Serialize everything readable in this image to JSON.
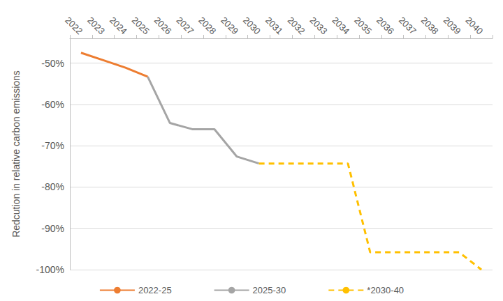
{
  "chart_data": {
    "type": "line",
    "y_label": "Redcution in relative carbon emissions",
    "categories": [
      "2022",
      "2023",
      "2024",
      "2025",
      "2026",
      "2027",
      "2028",
      "2029",
      "2030",
      "2031",
      "2032",
      "2033",
      "2034",
      "2035",
      "2036",
      "2037",
      "2038",
      "2039",
      "2040"
    ],
    "series": [
      {
        "name": "2022-25",
        "color": "#ED7D31",
        "line_style": "solid",
        "values": [
          -47.5,
          -49.3,
          -51.1,
          -53.3,
          null,
          null,
          null,
          null,
          null,
          null,
          null,
          null,
          null,
          null,
          null,
          null,
          null,
          null,
          null
        ]
      },
      {
        "name": "2025-30",
        "color": "#A5A5A5",
        "line_style": "solid",
        "values": [
          null,
          null,
          null,
          -53.3,
          -64.5,
          -66,
          -66,
          -72.6,
          -74.3,
          null,
          null,
          null,
          null,
          null,
          null,
          null,
          null,
          null,
          null
        ]
      },
      {
        "name": "*2030-40",
        "color": "#FFC000",
        "line_style": "dashed",
        "values": [
          null,
          null,
          null,
          null,
          null,
          null,
          null,
          null,
          -74.3,
          -74.3,
          -74.3,
          -74.3,
          -74.3,
          -95.8,
          -95.8,
          -95.8,
          -95.8,
          -95.8,
          -100
        ]
      }
    ],
    "ylim": [
      -100,
      -44
    ],
    "yticks": [
      {
        "value": -100,
        "label": "-100%"
      },
      {
        "value": -90,
        "label": "-90%"
      },
      {
        "value": -80,
        "label": "-80%"
      },
      {
        "value": -70,
        "label": "-70%"
      },
      {
        "value": -60,
        "label": "-60%"
      },
      {
        "value": -50,
        "label": "-50%"
      }
    ],
    "grid": true,
    "legend": "bottom"
  }
}
